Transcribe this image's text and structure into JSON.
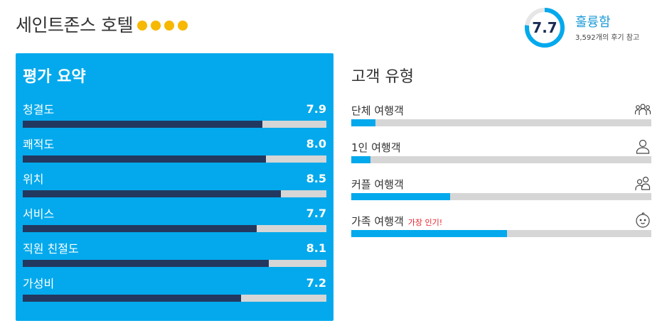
{
  "hotel": {
    "name": "세인트존스 호텔",
    "star_rating": 4,
    "star_color": "#f6b800"
  },
  "score": {
    "value": "7.7",
    "label": "훌륭함",
    "reviews": "3,592개의 후기 참고",
    "fraction": 0.77,
    "ring_color": "#03a9ec"
  },
  "summary": {
    "title": "평가 요약",
    "items": [
      {
        "label": "청결도",
        "value": "7.9",
        "fraction": 0.79
      },
      {
        "label": "쾌적도",
        "value": "8.0",
        "fraction": 0.8
      },
      {
        "label": "위치",
        "value": "8.5",
        "fraction": 0.85
      },
      {
        "label": "서비스",
        "value": "7.7",
        "fraction": 0.77
      },
      {
        "label": "직원 친절도",
        "value": "8.1",
        "fraction": 0.81
      },
      {
        "label": "가성비",
        "value": "7.2",
        "fraction": 0.72
      }
    ]
  },
  "travelers": {
    "title": "고객 유형",
    "items": [
      {
        "label": "단체 여행객",
        "badge": "",
        "icon": "group-icon",
        "fraction": 0.08
      },
      {
        "label": "1인 여행객",
        "badge": "",
        "icon": "person-icon",
        "fraction": 0.065
      },
      {
        "label": "커플 여행객",
        "badge": "",
        "icon": "couple-icon",
        "fraction": 0.33
      },
      {
        "label": "가족 여행객",
        "badge": "가장 인기!",
        "icon": "baby-icon",
        "fraction": 0.52
      }
    ]
  },
  "colors": {
    "panel": "#03a9ec",
    "bar_fill_dark": "#23385f",
    "bar_track": "#d6d6d6",
    "badge": "#e8202a"
  }
}
